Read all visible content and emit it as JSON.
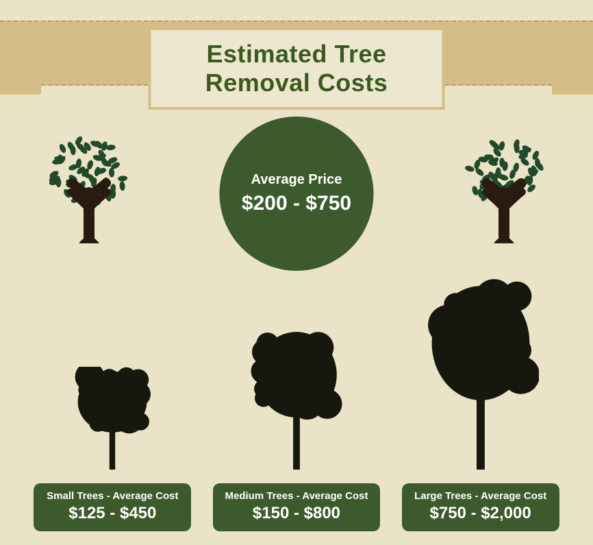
{
  "colors": {
    "title": "#3b5a1f",
    "circle_bg": "#3d5a2c",
    "pill_bg": "#3d5a2c",
    "silhouette": "#16180f",
    "deco_leaf": "#21492a",
    "deco_trunk": "#2a1b12"
  },
  "title": "Estimated Tree Removal Costs",
  "average": {
    "label": "Average Price",
    "value": "$200 - $750"
  },
  "sizes": [
    {
      "label": "Small Trees - Average Cost",
      "value": "$125 - $450",
      "tree_height": 150,
      "tree_width": 120
    },
    {
      "label": "Medium Trees - Average Cost",
      "value": "$150 - $800",
      "tree_height": 210,
      "tree_width": 140
    },
    {
      "label": "Large Trees - Average Cost",
      "value": "$750 - $2,000",
      "tree_height": 280,
      "tree_width": 170
    }
  ]
}
